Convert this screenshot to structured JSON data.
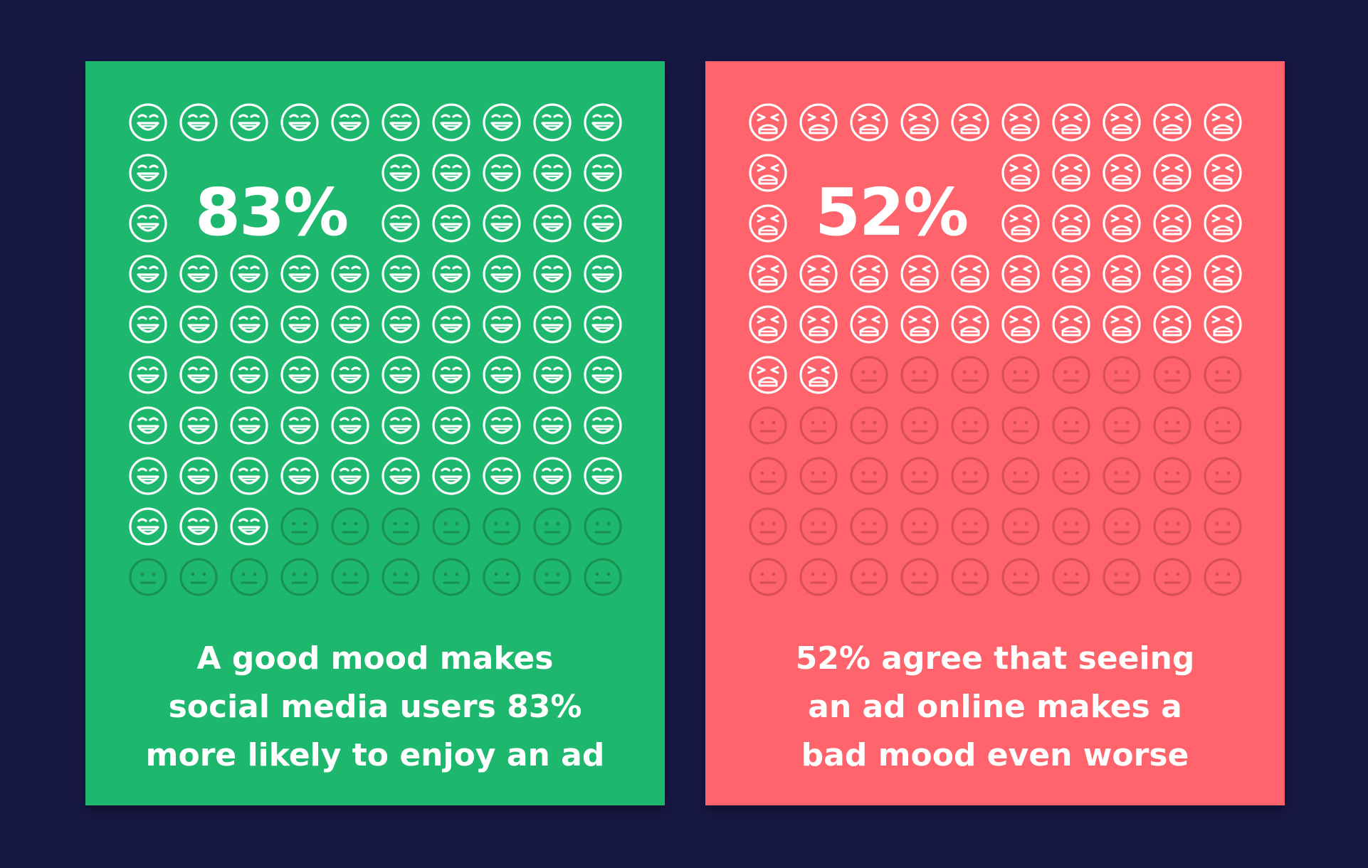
{
  "colors": {
    "background": "#171744",
    "positive_card": "#1eb76e",
    "negative_card": "#ff646c",
    "positive_dim_icon": "#19924f",
    "negative_dim_icon": "#d94f57"
  },
  "cards": [
    {
      "id": "positive",
      "percentage_label": "83%",
      "value": 83,
      "total": 100,
      "active_icon": "grinning-face-icon",
      "inactive_icon": "neutral-face-icon",
      "caption_lines": [
        "A good mood makes",
        "social media users 83%",
        "more likely to enjoy an ad"
      ]
    },
    {
      "id": "negative",
      "percentage_label": "52%",
      "value": 52,
      "total": 100,
      "active_icon": "tired-face-icon",
      "inactive_icon": "neutral-face-icon",
      "caption_lines": [
        "52% agree that seeing",
        "an ad online makes a",
        "bad mood even worse"
      ]
    }
  ]
}
